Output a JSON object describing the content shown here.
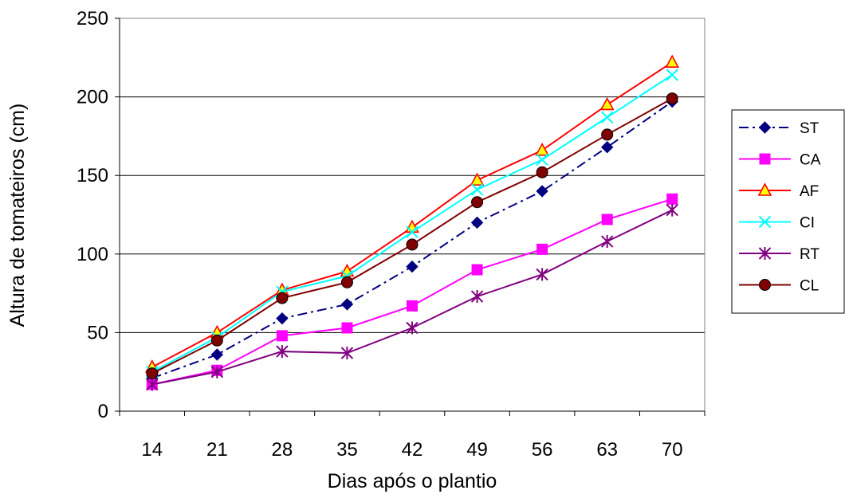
{
  "chart_data": {
    "type": "line",
    "title": "",
    "xlabel": "Dias após o plantio",
    "ylabel": "Altura de tomateiros (cm)",
    "categories": [
      "14",
      "21",
      "28",
      "35",
      "42",
      "49",
      "56",
      "63",
      "70"
    ],
    "ylim": [
      0,
      250
    ],
    "yticks": [
      "0",
      "50",
      "100",
      "150",
      "200",
      "250"
    ],
    "grid": "horizontal",
    "legend_position": "right",
    "series": [
      {
        "name": "ST",
        "color": "#000080",
        "marker": "diamond",
        "dash": "dashdot",
        "values": [
          21,
          36,
          59,
          68,
          92,
          120,
          140,
          168,
          197
        ]
      },
      {
        "name": "CA",
        "color": "#ff00ff",
        "marker": "square",
        "dash": "solid",
        "values": [
          17,
          26,
          48,
          53,
          67,
          90,
          103,
          122,
          135
        ]
      },
      {
        "name": "AF",
        "color": "#ff0000",
        "marker": "triangle",
        "dash": "solid",
        "values": [
          28,
          50,
          77,
          89,
          117,
          147,
          166,
          195,
          222
        ]
      },
      {
        "name": "CI",
        "color": "#00ffff",
        "marker": "x",
        "dash": "solid",
        "values": [
          25,
          47,
          76,
          86,
          114,
          141,
          160,
          187,
          214
        ]
      },
      {
        "name": "RT",
        "color": "#800080",
        "marker": "asterisk",
        "dash": "solid",
        "values": [
          17,
          25,
          38,
          37,
          53,
          73,
          87,
          108,
          128
        ]
      },
      {
        "name": "CL",
        "color": "#800000",
        "marker": "circle",
        "dash": "solid",
        "values": [
          24,
          45,
          72,
          82,
          106,
          133,
          152,
          176,
          199
        ]
      }
    ]
  }
}
